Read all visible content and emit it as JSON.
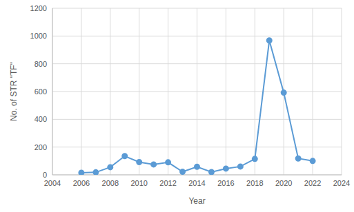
{
  "chart_data": {
    "type": "line",
    "x_label": "Year",
    "y_label": "No. of STR \"TF\"",
    "x": [
      2006,
      2007,
      2008,
      2009,
      2010,
      2011,
      2012,
      2013,
      2014,
      2015,
      2016,
      2017,
      2018,
      2019,
      2020,
      2021,
      2022
    ],
    "values": [
      15,
      18,
      55,
      135,
      92,
      75,
      90,
      22,
      58,
      20,
      45,
      60,
      115,
      968,
      592,
      118,
      100
    ],
    "color": "#5b9bd5",
    "marker": "circle",
    "line_style": "solid",
    "xlim": [
      2004,
      2024
    ],
    "xticks": [
      2004,
      2006,
      2008,
      2010,
      2012,
      2014,
      2016,
      2018,
      2020,
      2022,
      2024
    ],
    "ylim": [
      0,
      1200
    ],
    "yticks": [
      0,
      200,
      400,
      600,
      800,
      1000,
      1200
    ],
    "grid": true
  }
}
